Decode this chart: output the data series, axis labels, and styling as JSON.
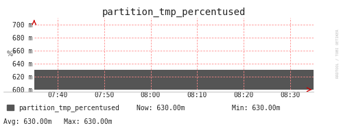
{
  "title": "partition_tmp_percentused",
  "ylabel": "%°",
  "xlim_start": 0,
  "xlim_end": 1,
  "ylim": [
    600,
    710
  ],
  "yticks": [
    600,
    620,
    640,
    660,
    680,
    700
  ],
  "xtick_labels": [
    "07:40",
    "07:50",
    "08:00",
    "08:10",
    "08:20",
    "08:30"
  ],
  "xtick_positions": [
    0.0833,
    0.25,
    0.4167,
    0.5833,
    0.75,
    0.9167
  ],
  "data_value": 630.0,
  "fill_color": "#555555",
  "fill_alpha": 1.0,
  "grid_color": "#ff8888",
  "bg_color": "#ffffff",
  "plot_bg_color": "#ffffff",
  "title_fontsize": 10,
  "tick_fontsize": 7,
  "legend_label": "partition_tmp_percentused",
  "legend_color": "#555555",
  "now_text": "Now: 630.00m",
  "min_text": "Min: 630.00m",
  "avg_text": "Avg: 630.00m",
  "max_text": "Max: 630.00m",
  "watermark": "RRDTOOL / TOBI OETIKER",
  "arrow_color": "#cc0000",
  "ytick_suffix": " m"
}
